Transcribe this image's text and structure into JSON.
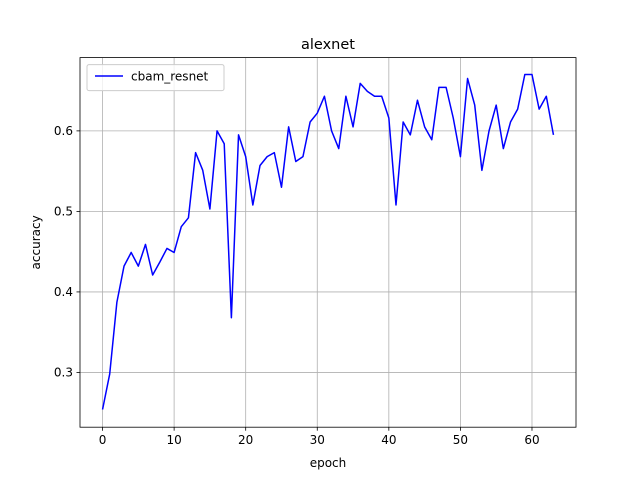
{
  "chart_data": {
    "type": "line",
    "title": "alexnet",
    "xlabel": "epoch",
    "ylabel": "accuracy",
    "xlim": [
      -3.15,
      66.15
    ],
    "ylim": [
      0.232,
      0.691
    ],
    "xticks": [
      0,
      10,
      20,
      30,
      40,
      50,
      60
    ],
    "yticks": [
      0.3,
      0.4,
      0.5,
      0.6
    ],
    "ytick_labels": [
      "0.3",
      "0.4",
      "0.5",
      "0.6"
    ],
    "grid": true,
    "legend_position": "upper-left",
    "series": [
      {
        "name": "cbam_resnet",
        "color": "#0000ff",
        "x": [
          0,
          1,
          2,
          3,
          4,
          5,
          6,
          7,
          8,
          9,
          10,
          11,
          12,
          13,
          14,
          15,
          16,
          17,
          18,
          19,
          20,
          21,
          22,
          23,
          24,
          25,
          26,
          27,
          28,
          29,
          30,
          31,
          32,
          33,
          34,
          35,
          36,
          37,
          38,
          39,
          40,
          41,
          42,
          43,
          44,
          45,
          46,
          47,
          48,
          49,
          50,
          51,
          52,
          53,
          54,
          55,
          56,
          57,
          58,
          59,
          60,
          61,
          62,
          63
        ],
        "values": [
          0.254,
          0.298,
          0.387,
          0.432,
          0.449,
          0.432,
          0.459,
          0.421,
          0.437,
          0.454,
          0.449,
          0.481,
          0.492,
          0.573,
          0.551,
          0.503,
          0.6,
          0.584,
          0.368,
          0.595,
          0.568,
          0.508,
          0.557,
          0.568,
          0.573,
          0.53,
          0.605,
          0.562,
          0.568,
          0.611,
          0.622,
          0.643,
          0.6,
          0.578,
          0.643,
          0.605,
          0.659,
          0.649,
          0.643,
          0.643,
          0.616,
          0.508,
          0.611,
          0.595,
          0.638,
          0.605,
          0.589,
          0.654,
          0.654,
          0.616,
          0.568,
          0.665,
          0.632,
          0.551,
          0.6,
          0.632,
          0.578,
          0.611,
          0.627,
          0.67,
          0.67,
          0.627,
          0.643,
          0.595
        ]
      }
    ]
  }
}
